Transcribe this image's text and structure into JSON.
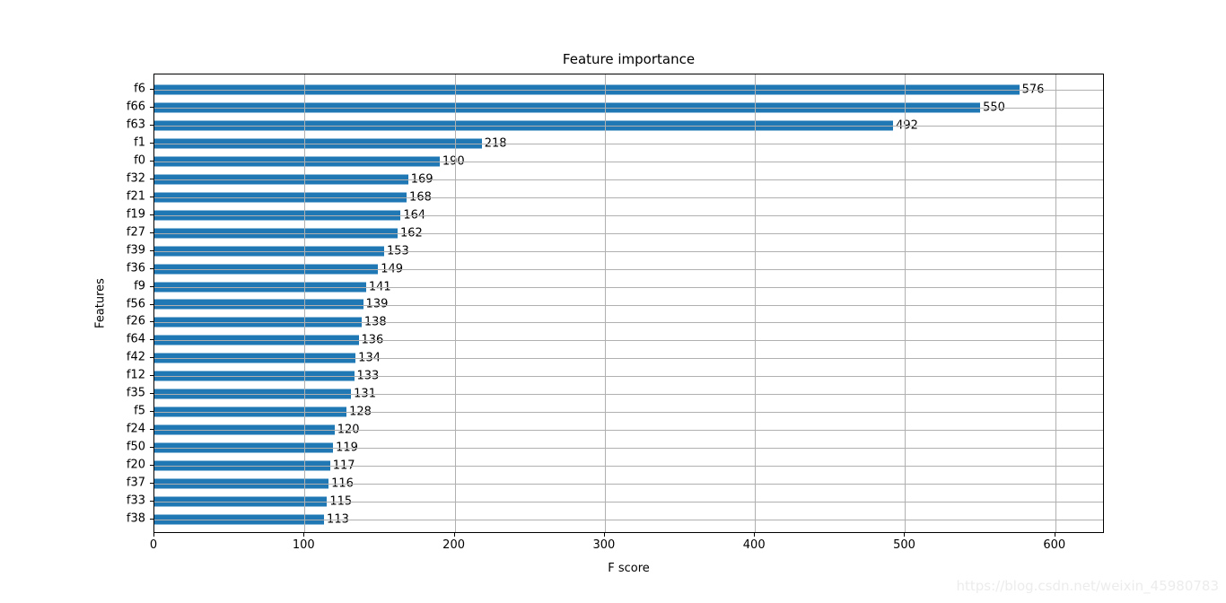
{
  "watermark": "https://blog.csdn.net/weixin_45980783",
  "chart_data": {
    "type": "bar",
    "orientation": "horizontal",
    "title": "Feature importance",
    "xlabel": "F score",
    "ylabel": "Features",
    "categories": [
      "f6",
      "f66",
      "f63",
      "f1",
      "f0",
      "f32",
      "f21",
      "f19",
      "f27",
      "f39",
      "f36",
      "f9",
      "f56",
      "f26",
      "f64",
      "f42",
      "f12",
      "f35",
      "f5",
      "f24",
      "f50",
      "f20",
      "f37",
      "f33",
      "f38"
    ],
    "values": [
      576,
      550,
      492,
      218,
      190,
      169,
      168,
      164,
      162,
      153,
      149,
      141,
      139,
      138,
      136,
      134,
      133,
      131,
      128,
      120,
      119,
      117,
      116,
      115,
      113
    ],
    "bar_value_labels": [
      "576",
      "550",
      "492",
      "218",
      "190",
      "169",
      "168",
      "164",
      "162",
      "153",
      "149",
      "141",
      "139",
      "138",
      "136",
      "134",
      "133",
      "131",
      "128",
      "120",
      "119",
      "117",
      "116",
      "115",
      "113"
    ],
    "xlim": [
      0,
      633
    ],
    "xticks": [
      0,
      100,
      200,
      300,
      400,
      500,
      600
    ],
    "grid": true,
    "grid_over_bars": true,
    "legend": "none",
    "bar_color": "#1f77b4",
    "grid_color": "#b0b0b0"
  }
}
